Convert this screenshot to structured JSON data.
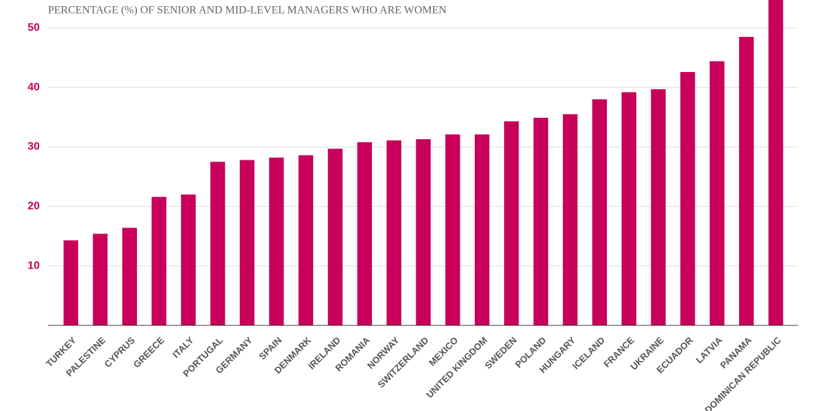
{
  "chart_data": {
    "type": "bar",
    "title": "PERCENTAGE (%) OF SENIOR AND MID-LEVEL MANAGERS WHO ARE WOMEN",
    "categories": [
      "TURKEY",
      "PALESTINE",
      "CYPRUS",
      "GREECE",
      "ITALY",
      "PORTUGAL",
      "GERMANY",
      "SPAIN",
      "DENMARK",
      "IRELAND",
      "ROMANIA",
      "NORWAY",
      "SWITZERLAND",
      "MEXICO",
      "UNITED KINGDOM",
      "SWEDEN",
      "POLAND",
      "HUNGARY",
      "ICELAND",
      "FRANCE",
      "UKRAINE",
      "ECUADOR",
      "LATVIA",
      "PANAMA",
      "DOMINICAN REPUBLIC"
    ],
    "values": [
      14.3,
      15.4,
      16.4,
      21.6,
      22.0,
      27.5,
      27.8,
      28.2,
      28.6,
      29.7,
      30.8,
      31.1,
      31.3,
      32.1,
      32.1,
      34.3,
      34.9,
      35.5,
      38.0,
      39.2,
      39.7,
      42.6,
      44.4,
      48.5,
      57
    ],
    "color": "#c8005a",
    "ylim": [
      0,
      54.7
    ],
    "yticks": [
      10,
      20,
      30,
      40,
      50
    ],
    "grid": true
  }
}
